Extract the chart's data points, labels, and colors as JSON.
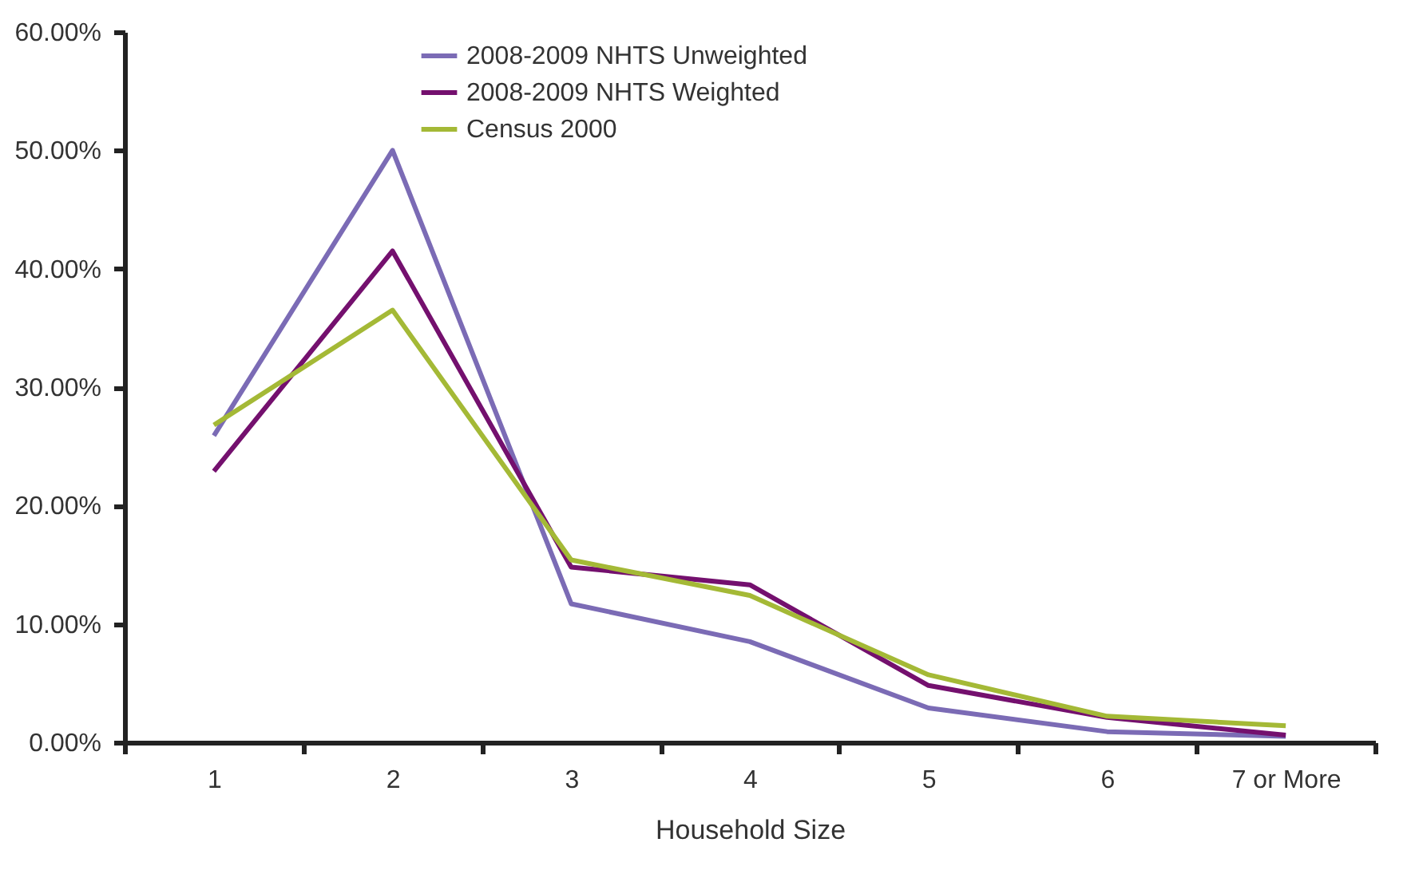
{
  "chart_data": {
    "type": "line",
    "xlabel": "Household Size",
    "categories": [
      "1",
      "2",
      "3",
      "4",
      "5",
      "6",
      "7 or More"
    ],
    "series": [
      {
        "name": "2008-2009 NHTS Unweighted",
        "color": "#7b6bb5",
        "values": [
          25.9,
          50.0,
          11.7,
          8.5,
          2.9,
          0.9,
          0.5
        ]
      },
      {
        "name": "2008-2009 NHTS Weighted",
        "color": "#74106e",
        "values": [
          22.9,
          41.5,
          14.8,
          13.3,
          4.8,
          2.1,
          0.6
        ]
      },
      {
        "name": "Census 2000",
        "color": "#a4b936",
        "values": [
          26.8,
          36.5,
          15.4,
          12.4,
          5.7,
          2.2,
          1.4
        ]
      }
    ],
    "ylim": [
      0,
      60
    ],
    "yticks": [
      {
        "value": 0,
        "label": "0.00%"
      },
      {
        "value": 10,
        "label": "10.00%"
      },
      {
        "value": 20,
        "label": "20.00%"
      },
      {
        "value": 30,
        "label": "30.00%"
      },
      {
        "value": 40,
        "label": "40.00%"
      },
      {
        "value": 50,
        "label": "50.00%"
      },
      {
        "value": 60,
        "label": "60.00%"
      }
    ],
    "grid": false,
    "legend": "top",
    "line_style": "solid",
    "marker": "none"
  }
}
